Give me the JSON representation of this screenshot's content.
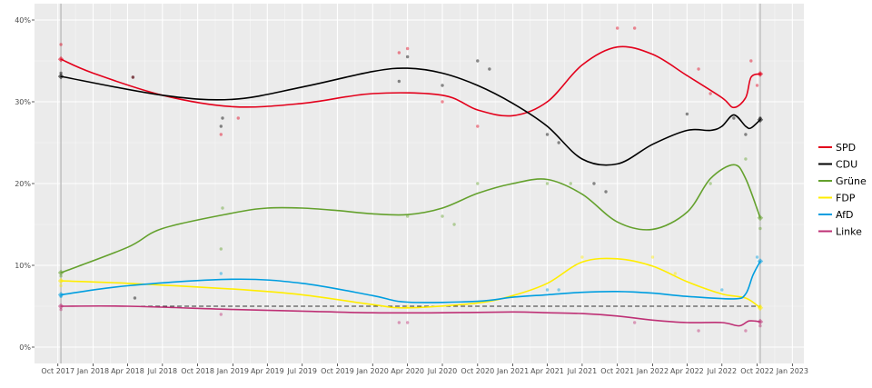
{
  "chart_data": {
    "type": "line",
    "x_axis": {
      "unit": "date",
      "range": [
        "2017-08-01",
        "2023-01-31"
      ],
      "ticks": [
        {
          "date": "2017-10-01",
          "label": "Oct 2017"
        },
        {
          "date": "2018-01-01",
          "label": "Jan 2018"
        },
        {
          "date": "2018-04-01",
          "label": "Apr 2018"
        },
        {
          "date": "2018-07-01",
          "label": "Jul 2018"
        },
        {
          "date": "2018-10-01",
          "label": "Oct 2018"
        },
        {
          "date": "2019-01-01",
          "label": "Jan 2019"
        },
        {
          "date": "2019-04-01",
          "label": "Apr 2019"
        },
        {
          "date": "2019-07-01",
          "label": "Jul 2019"
        },
        {
          "date": "2019-10-01",
          "label": "Oct 2019"
        },
        {
          "date": "2020-01-01",
          "label": "Jan 2020"
        },
        {
          "date": "2020-04-01",
          "label": "Apr 2020"
        },
        {
          "date": "2020-07-01",
          "label": "Jul 2020"
        },
        {
          "date": "2020-10-01",
          "label": "Oct 2020"
        },
        {
          "date": "2021-01-01",
          "label": "Jan 2021"
        },
        {
          "date": "2021-04-01",
          "label": "Apr 2021"
        },
        {
          "date": "2021-07-01",
          "label": "Jul 2021"
        },
        {
          "date": "2021-10-01",
          "label": "Oct 2021"
        },
        {
          "date": "2022-01-01",
          "label": "Jan 2022"
        },
        {
          "date": "2022-04-01",
          "label": "Apr 2022"
        },
        {
          "date": "2022-07-01",
          "label": "Jul 2022"
        },
        {
          "date": "2022-10-01",
          "label": "Oct 2022"
        },
        {
          "date": "2023-01-01",
          "label": "Jan 2023"
        }
      ]
    },
    "y_axis": {
      "unit": "percent",
      "range": [
        -2,
        42
      ],
      "ticks": [
        {
          "value": 0,
          "label": "0%"
        },
        {
          "value": 10,
          "label": "10%"
        },
        {
          "value": 20,
          "label": "20%"
        },
        {
          "value": 30,
          "label": "30%"
        },
        {
          "value": 40,
          "label": "40%"
        }
      ]
    },
    "grid": true,
    "legend_position": "right",
    "reference_lines": {
      "horizontal": [
        {
          "value": 5,
          "style": "dashed",
          "color": "#333333"
        }
      ],
      "vertical_dates": [
        "2017-10-09",
        "2022-10-09"
      ]
    },
    "series": [
      {
        "name": "SPD",
        "color": "#e3001b",
        "values": [
          [
            "2017-10-09",
            35.2
          ],
          [
            "2018-01-01",
            33.5
          ],
          [
            "2018-07-01",
            30.8
          ],
          [
            "2019-01-01",
            29.4
          ],
          [
            "2019-07-01",
            29.8
          ],
          [
            "2020-01-01",
            31.0
          ],
          [
            "2020-07-01",
            30.8
          ],
          [
            "2020-10-01",
            29.0
          ],
          [
            "2021-01-01",
            28.3
          ],
          [
            "2021-04-01",
            30.0
          ],
          [
            "2021-07-01",
            34.5
          ],
          [
            "2021-10-01",
            36.7
          ],
          [
            "2022-01-01",
            35.8
          ],
          [
            "2022-04-01",
            33.2
          ],
          [
            "2022-07-01",
            30.5
          ],
          [
            "2022-08-01",
            29.3
          ],
          [
            "2022-09-01",
            30.5
          ],
          [
            "2022-09-15",
            33.0
          ],
          [
            "2022-10-09",
            33.4
          ]
        ],
        "points": [
          [
            "2017-10-09",
            37.0
          ],
          [
            "2018-04-15",
            33.0
          ],
          [
            "2018-12-01",
            26.0
          ],
          [
            "2019-01-15",
            28.0
          ],
          [
            "2020-03-10",
            36.0
          ],
          [
            "2020-04-01",
            36.5
          ],
          [
            "2020-07-01",
            30.0
          ],
          [
            "2020-10-01",
            27.0
          ],
          [
            "2021-10-01",
            39.0
          ],
          [
            "2021-11-15",
            39.0
          ],
          [
            "2022-05-01",
            34.0
          ],
          [
            "2022-06-01",
            31.0
          ],
          [
            "2022-09-15",
            35.0
          ],
          [
            "2022-10-01",
            32.0
          ],
          [
            "2022-10-09",
            33.4
          ]
        ]
      },
      {
        "name": "CDU",
        "color": "#000000",
        "values": [
          [
            "2017-10-09",
            33.1
          ],
          [
            "2018-07-01",
            30.8
          ],
          [
            "2019-01-01",
            30.3
          ],
          [
            "2019-07-01",
            31.8
          ],
          [
            "2020-01-01",
            33.7
          ],
          [
            "2020-04-01",
            34.1
          ],
          [
            "2020-07-01",
            33.5
          ],
          [
            "2020-10-01",
            32.0
          ],
          [
            "2021-01-01",
            29.8
          ],
          [
            "2021-04-01",
            27.0
          ],
          [
            "2021-07-01",
            23.0
          ],
          [
            "2021-10-01",
            22.4
          ],
          [
            "2022-01-01",
            24.8
          ],
          [
            "2022-04-01",
            26.5
          ],
          [
            "2022-06-01",
            26.5
          ],
          [
            "2022-07-01",
            27.0
          ],
          [
            "2022-08-01",
            28.4
          ],
          [
            "2022-09-01",
            27.0
          ],
          [
            "2022-09-15",
            26.8
          ],
          [
            "2022-10-09",
            27.8
          ]
        ],
        "points": [
          [
            "2017-10-09",
            33.5
          ],
          [
            "2018-04-15",
            33.0
          ],
          [
            "2018-04-20",
            6.0
          ],
          [
            "2018-12-01",
            27.0
          ],
          [
            "2018-12-05",
            28.0
          ],
          [
            "2020-03-10",
            32.5
          ],
          [
            "2020-04-01",
            35.5
          ],
          [
            "2020-07-01",
            32.0
          ],
          [
            "2020-10-01",
            35.0
          ],
          [
            "2020-11-01",
            34.0
          ],
          [
            "2021-04-01",
            26.0
          ],
          [
            "2021-05-01",
            25.0
          ],
          [
            "2021-08-01",
            20.0
          ],
          [
            "2021-09-01",
            19.0
          ],
          [
            "2022-04-01",
            28.5
          ],
          [
            "2022-08-01",
            28.0
          ],
          [
            "2022-09-01",
            26.0
          ],
          [
            "2022-10-09",
            28.0
          ]
        ]
      },
      {
        "name": "Grüne",
        "color": "#64a12d",
        "values": [
          [
            "2017-10-09",
            9.1
          ],
          [
            "2018-04-01",
            12.2
          ],
          [
            "2018-07-01",
            14.5
          ],
          [
            "2019-01-01",
            16.4
          ],
          [
            "2019-04-01",
            17.0
          ],
          [
            "2019-07-01",
            17.0
          ],
          [
            "2019-10-01",
            16.7
          ],
          [
            "2020-01-01",
            16.3
          ],
          [
            "2020-04-01",
            16.2
          ],
          [
            "2020-07-01",
            17.0
          ],
          [
            "2020-10-01",
            18.8
          ],
          [
            "2021-01-01",
            20.0
          ],
          [
            "2021-04-01",
            20.5
          ],
          [
            "2021-07-01",
            18.7
          ],
          [
            "2021-10-01",
            15.3
          ],
          [
            "2022-01-01",
            14.4
          ],
          [
            "2022-04-01",
            16.5
          ],
          [
            "2022-06-01",
            20.6
          ],
          [
            "2022-08-01",
            22.3
          ],
          [
            "2022-09-01",
            20.6
          ],
          [
            "2022-10-09",
            15.8
          ]
        ],
        "points": [
          [
            "2017-10-09",
            8.7
          ],
          [
            "2018-12-01",
            12.0
          ],
          [
            "2018-12-05",
            17.0
          ],
          [
            "2020-04-01",
            16.0
          ],
          [
            "2020-07-01",
            16.0
          ],
          [
            "2020-08-01",
            15.0
          ],
          [
            "2020-10-01",
            20.0
          ],
          [
            "2021-04-01",
            20.0
          ],
          [
            "2021-06-01",
            20.0
          ],
          [
            "2022-06-01",
            20.0
          ],
          [
            "2022-09-01",
            23.0
          ],
          [
            "2022-10-09",
            14.5
          ]
        ]
      },
      {
        "name": "FDP",
        "color": "#ffed00",
        "values": [
          [
            "2017-10-09",
            8.1
          ],
          [
            "2018-04-01",
            7.8
          ],
          [
            "2019-01-01",
            7.1
          ],
          [
            "2019-07-01",
            6.4
          ],
          [
            "2020-01-01",
            5.2
          ],
          [
            "2020-04-01",
            4.8
          ],
          [
            "2020-10-01",
            5.4
          ],
          [
            "2021-01-01",
            6.3
          ],
          [
            "2021-04-01",
            7.8
          ],
          [
            "2021-07-01",
            10.4
          ],
          [
            "2021-10-01",
            10.8
          ],
          [
            "2022-01-01",
            9.9
          ],
          [
            "2022-04-01",
            8.0
          ],
          [
            "2022-07-01",
            6.5
          ],
          [
            "2022-09-01",
            6.0
          ],
          [
            "2022-10-09",
            4.8
          ]
        ],
        "points": [
          [
            "2017-10-09",
            7.5
          ],
          [
            "2020-04-01",
            5.0
          ],
          [
            "2021-07-01",
            11.0
          ],
          [
            "2022-01-01",
            11.0
          ],
          [
            "2022-03-01",
            9.0
          ],
          [
            "2022-10-09",
            5.0
          ]
        ]
      },
      {
        "name": "AfD",
        "color": "#009ee0",
        "values": [
          [
            "2017-10-09",
            6.4
          ],
          [
            "2018-04-01",
            7.5
          ],
          [
            "2019-01-01",
            8.3
          ],
          [
            "2019-07-01",
            7.8
          ],
          [
            "2020-01-01",
            6.3
          ],
          [
            "2020-04-01",
            5.5
          ],
          [
            "2020-10-01",
            5.6
          ],
          [
            "2021-01-01",
            6.1
          ],
          [
            "2021-04-01",
            6.4
          ],
          [
            "2021-07-01",
            6.7
          ],
          [
            "2021-10-01",
            6.8
          ],
          [
            "2022-01-01",
            6.6
          ],
          [
            "2022-04-01",
            6.2
          ],
          [
            "2022-08-01",
            5.9
          ],
          [
            "2022-09-01",
            6.5
          ],
          [
            "2022-09-20",
            8.8
          ],
          [
            "2022-10-09",
            10.5
          ]
        ],
        "points": [
          [
            "2017-10-09",
            6.2
          ],
          [
            "2018-12-01",
            9.0
          ],
          [
            "2021-04-01",
            7.0
          ],
          [
            "2021-05-01",
            7.0
          ],
          [
            "2022-07-01",
            7.0
          ],
          [
            "2022-10-01",
            11.0
          ]
        ]
      },
      {
        "name": "Linke",
        "color": "#be3075",
        "values": [
          [
            "2017-10-09",
            5.0
          ],
          [
            "2018-04-01",
            5.0
          ],
          [
            "2019-01-01",
            4.6
          ],
          [
            "2019-07-01",
            4.4
          ],
          [
            "2020-01-01",
            4.2
          ],
          [
            "2020-07-01",
            4.2
          ],
          [
            "2021-01-01",
            4.3
          ],
          [
            "2021-04-01",
            4.2
          ],
          [
            "2021-07-01",
            4.1
          ],
          [
            "2021-10-01",
            3.8
          ],
          [
            "2022-01-01",
            3.3
          ],
          [
            "2022-04-01",
            3.0
          ],
          [
            "2022-07-01",
            3.0
          ],
          [
            "2022-08-15",
            2.6
          ],
          [
            "2022-09-10",
            3.2
          ],
          [
            "2022-10-09",
            3.1
          ]
        ],
        "points": [
          [
            "2017-10-09",
            4.6
          ],
          [
            "2018-12-01",
            4.0
          ],
          [
            "2020-03-10",
            3.0
          ],
          [
            "2020-04-01",
            3.0
          ],
          [
            "2021-11-15",
            3.0
          ],
          [
            "2022-05-01",
            2.0
          ],
          [
            "2022-09-01",
            2.0
          ],
          [
            "2022-10-09",
            2.6
          ]
        ]
      }
    ]
  }
}
